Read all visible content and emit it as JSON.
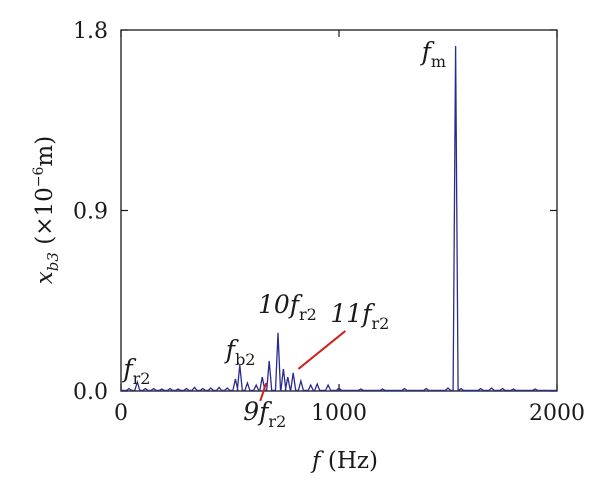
{
  "chart_data": {
    "type": "line",
    "title": "",
    "xlabel": "f (Hz)",
    "ylabel": "x_b3 (×10^-6 m)",
    "xlim": [
      0,
      2000
    ],
    "ylim": [
      0,
      1.8
    ],
    "x_ticks": [
      0,
      1000,
      2000
    ],
    "y_ticks": [
      0.0,
      0.9,
      1.8
    ],
    "grid": false,
    "legend": "none",
    "series": [
      {
        "color": "#2b2b8f",
        "peaks": [
          {
            "x": 37,
            "y": 0.012
          },
          {
            "x": 75,
            "y": 0.045
          },
          {
            "x": 112,
            "y": 0.012
          },
          {
            "x": 150,
            "y": 0.012
          },
          {
            "x": 187,
            "y": 0.01
          },
          {
            "x": 225,
            "y": 0.012
          },
          {
            "x": 262,
            "y": 0.01
          },
          {
            "x": 300,
            "y": 0.012
          },
          {
            "x": 337,
            "y": 0.018
          },
          {
            "x": 375,
            "y": 0.012
          },
          {
            "x": 412,
            "y": 0.015
          },
          {
            "x": 450,
            "y": 0.018
          },
          {
            "x": 487,
            "y": 0.015
          },
          {
            "x": 525,
            "y": 0.06
          },
          {
            "x": 545,
            "y": 0.13
          },
          {
            "x": 580,
            "y": 0.04
          },
          {
            "x": 620,
            "y": 0.03
          },
          {
            "x": 648,
            "y": 0.07
          },
          {
            "x": 680,
            "y": 0.15
          },
          {
            "x": 720,
            "y": 0.29
          },
          {
            "x": 745,
            "y": 0.11
          },
          {
            "x": 765,
            "y": 0.07
          },
          {
            "x": 790,
            "y": 0.09
          },
          {
            "x": 825,
            "y": 0.05
          },
          {
            "x": 870,
            "y": 0.03
          },
          {
            "x": 900,
            "y": 0.035
          },
          {
            "x": 950,
            "y": 0.03
          },
          {
            "x": 1000,
            "y": 0.015
          },
          {
            "x": 1100,
            "y": 0.01
          },
          {
            "x": 1200,
            "y": 0.01
          },
          {
            "x": 1300,
            "y": 0.012
          },
          {
            "x": 1400,
            "y": 0.012
          },
          {
            "x": 1500,
            "y": 0.015
          },
          {
            "x": 1535,
            "y": 1.72
          },
          {
            "x": 1560,
            "y": 0.012
          },
          {
            "x": 1650,
            "y": 0.012
          },
          {
            "x": 1700,
            "y": 0.015
          },
          {
            "x": 1750,
            "y": 0.012
          },
          {
            "x": 1800,
            "y": 0.01
          },
          {
            "x": 1900,
            "y": 0.01
          }
        ]
      }
    ],
    "annotations": [
      {
        "main": "f",
        "sub": "m",
        "x": 1535,
        "y": 1.72
      },
      {
        "main": "f",
        "sub": "r2",
        "x": 75,
        "y": 0.045
      },
      {
        "main": "f",
        "sub": "b2",
        "x": 545,
        "y": 0.13
      },
      {
        "main": "10f",
        "sub": "r2",
        "x": 720,
        "y": 0.29
      },
      {
        "main": "11f",
        "sub": "r2",
        "x": 800,
        "y": 0.09
      },
      {
        "main": "9f",
        "sub": "r2",
        "x": 648,
        "y": 0.07
      }
    ],
    "leader_color": "#d0221a"
  }
}
